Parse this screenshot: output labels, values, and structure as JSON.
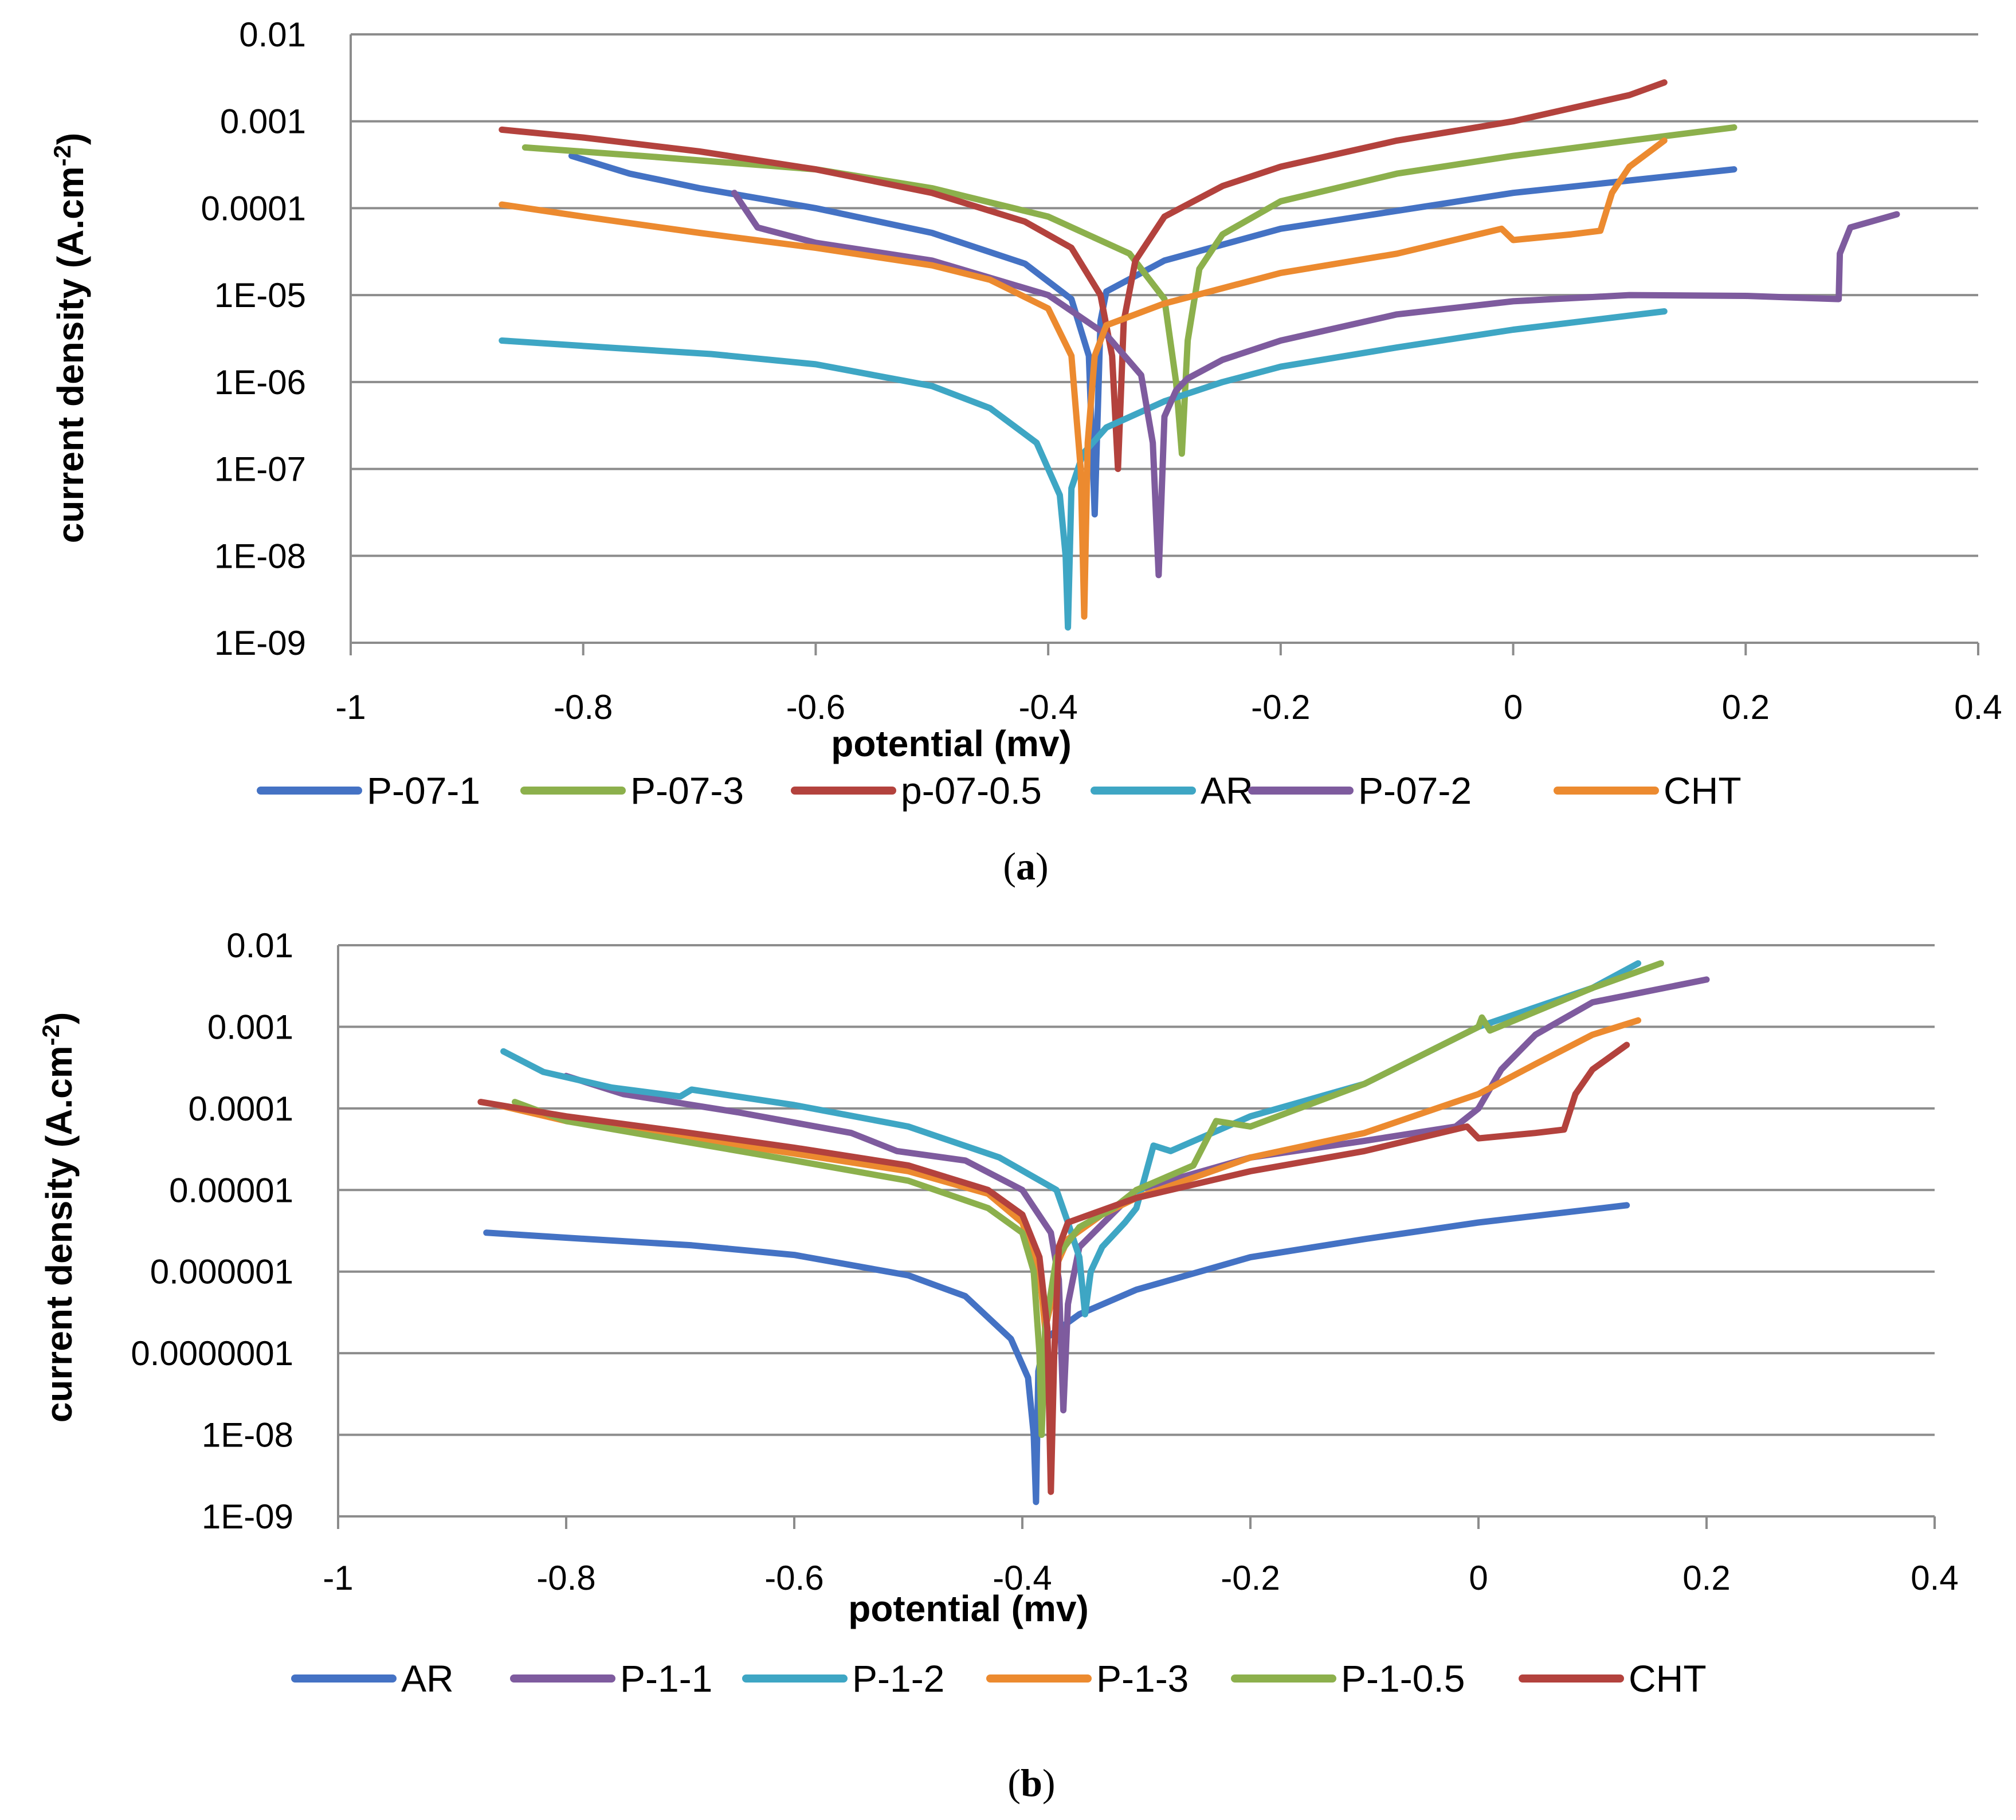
{
  "colors": {
    "blue": "#4472C4",
    "green": "#8CB04C",
    "red": "#B3423D",
    "teal": "#3EA6C4",
    "purple": "#7E5B9E",
    "orange": "#EC8A2F",
    "grid": "#8C8C8C"
  },
  "chart_data": [
    {
      "type": "line",
      "caption_letter": "a",
      "xlabel": "potential (mv)",
      "ylabel": "current density (A.cm",
      "ylabel_sup": "-2",
      "ylabel_close": ")",
      "xlim": [
        -1,
        0.4
      ],
      "x_ticks": [
        -1,
        -0.8,
        -0.6,
        -0.4,
        -0.2,
        0,
        0.2,
        0.4
      ],
      "x_tick_labels": [
        "-1",
        "-0.8",
        "-0.6",
        "-0.4",
        "-0.2",
        "0",
        "0.2",
        "0.4"
      ],
      "y_scale": "log",
      "ylim": [
        1e-09,
        0.01
      ],
      "y_ticks": [
        0.01,
        0.001,
        0.0001,
        1e-05,
        1e-06,
        1e-07,
        1e-08,
        1e-09
      ],
      "y_tick_labels": [
        "0.01",
        "0.001",
        "0.0001",
        "1E-05",
        "1E-06",
        "1E-07",
        "1E-08",
        "1E-09"
      ],
      "series": [
        {
          "name": "P-07-1",
          "color": "#4472C4",
          "x": [
            -0.81,
            -0.76,
            -0.7,
            -0.6,
            -0.5,
            -0.42,
            -0.38,
            -0.365,
            -0.36,
            -0.355,
            -0.35,
            -0.3,
            -0.2,
            0,
            0.19
          ],
          "y": [
            0.0004,
            0.00025,
            0.00017,
            0.0001,
            5.2e-05,
            2.3e-05,
            9e-06,
            2e-06,
            3e-08,
            5e-06,
            1.1e-05,
            2.5e-05,
            5.8e-05,
            0.00015,
            0.00028
          ]
        },
        {
          "name": "P-07-3",
          "color": "#8CB04C",
          "x": [
            -0.85,
            -0.75,
            -0.6,
            -0.5,
            -0.4,
            -0.33,
            -0.3,
            -0.29,
            -0.285,
            -0.28,
            -0.27,
            -0.25,
            -0.2,
            -0.1,
            0,
            0.1,
            0.19
          ],
          "y": [
            0.0005,
            0.0004,
            0.00028,
            0.00017,
            8e-05,
            3e-05,
            9e-06,
            1e-06,
            1.5e-07,
            3e-06,
            2e-05,
            5e-05,
            0.00012,
            0.00025,
            0.0004,
            0.0006,
            0.00085
          ]
        },
        {
          "name": "p-07-0.5",
          "color": "#B3423D",
          "x": [
            -0.87,
            -0.8,
            -0.7,
            -0.6,
            -0.5,
            -0.42,
            -0.38,
            -0.355,
            -0.345,
            -0.34,
            -0.335,
            -0.325,
            -0.3,
            -0.25,
            -0.2,
            -0.1,
            0,
            0.1,
            0.13
          ],
          "y": [
            0.0008,
            0.00065,
            0.00045,
            0.00028,
            0.00015,
            7e-05,
            3.5e-05,
            1e-05,
            2e-06,
            1e-07,
            5e-06,
            2.5e-05,
            8e-05,
            0.00018,
            0.0003,
            0.0006,
            0.001,
            0.002,
            0.0028
          ]
        },
        {
          "name": "AR",
          "color": "#3EA6C4",
          "x": [
            -0.87,
            -0.78,
            -0.69,
            -0.6,
            -0.5,
            -0.45,
            -0.41,
            -0.39,
            -0.385,
            -0.383,
            -0.38,
            -0.37,
            -0.35,
            -0.3,
            -0.25,
            -0.2,
            -0.1,
            0,
            0.13
          ],
          "y": [
            3e-06,
            2.5e-06,
            2.1e-06,
            1.6e-06,
            9e-07,
            5e-07,
            2e-07,
            5e-08,
            1e-08,
            1.5e-09,
            6e-08,
            1.5e-07,
            3e-07,
            6e-07,
            1e-06,
            1.5e-06,
            2.5e-06,
            4e-06,
            6.5e-06
          ]
        },
        {
          "name": "P-07-2",
          "color": "#7E5B9E",
          "x": [
            -0.67,
            -0.65,
            -0.6,
            -0.5,
            -0.4,
            -0.35,
            -0.32,
            -0.31,
            -0.305,
            -0.3,
            -0.29,
            -0.28,
            -0.25,
            -0.2,
            -0.1,
            0,
            0.1,
            0.2,
            0.28,
            0.281,
            0.29,
            0.33
          ],
          "y": [
            0.00015,
            6e-05,
            4e-05,
            2.5e-05,
            1e-05,
            3.5e-06,
            1.2e-06,
            2e-07,
            6e-09,
            4e-07,
            8e-07,
            1.1e-06,
            1.8e-06,
            3e-06,
            6e-06,
            8.5e-06,
            1e-05,
            9.8e-06,
            9e-06,
            3e-05,
            6e-05,
            8.5e-05
          ]
        },
        {
          "name": "CHT",
          "color": "#EC8A2F",
          "x": [
            -0.87,
            -0.8,
            -0.7,
            -0.6,
            -0.5,
            -0.45,
            -0.4,
            -0.38,
            -0.372,
            -0.369,
            -0.366,
            -0.36,
            -0.35,
            -0.3,
            -0.2,
            -0.1,
            -0.01,
            0.0,
            0.05,
            0.075,
            0.085,
            0.1,
            0.13
          ],
          "y": [
            0.00011,
            8e-05,
            5.2e-05,
            3.5e-05,
            2.2e-05,
            1.5e-05,
            7e-06,
            2e-06,
            1e-07,
            2e-09,
            2e-07,
            2e-06,
            4.5e-06,
            8e-06,
            1.8e-05,
            3e-05,
            5.8e-05,
            4.3e-05,
            5e-05,
            5.5e-05,
            0.00015,
            0.0003,
            0.0006
          ]
        }
      ]
    },
    {
      "type": "line",
      "caption_letter": "b",
      "xlabel": "potential (mv)",
      "ylabel": "current density (A.cm",
      "ylabel_sup": "-2",
      "ylabel_close": ")",
      "xlim": [
        -1,
        0.4
      ],
      "x_ticks": [
        -1,
        -0.8,
        -0.6,
        -0.4,
        -0.2,
        0,
        0.2,
        0.4
      ],
      "x_tick_labels": [
        "-1",
        "-0.8",
        "-0.6",
        "-0.4",
        "-0.2",
        "0",
        "0.2",
        "0.4"
      ],
      "y_scale": "log",
      "ylim": [
        1e-09,
        0.01
      ],
      "y_ticks": [
        0.01,
        0.001,
        0.0001,
        1e-05,
        1e-06,
        1e-07,
        1e-08,
        1e-09
      ],
      "y_tick_labels": [
        "0.01",
        "0.001",
        "0.0001",
        "0.00001",
        "0.000001",
        "0.0000001",
        "1E-08",
        "1E-09"
      ],
      "series": [
        {
          "name": "AR",
          "color": "#4472C4",
          "x": [
            -0.87,
            -0.78,
            -0.69,
            -0.6,
            -0.5,
            -0.45,
            -0.41,
            -0.395,
            -0.39,
            -0.388,
            -0.386,
            -0.38,
            -0.35,
            -0.3,
            -0.2,
            -0.1,
            0,
            0.13
          ],
          "y": [
            3e-06,
            2.5e-06,
            2.1e-06,
            1.6e-06,
            9e-07,
            5e-07,
            1.5e-07,
            5e-08,
            1e-08,
            1.5e-09,
            6e-08,
            1.5e-07,
            3e-07,
            6e-07,
            1.5e-06,
            2.5e-06,
            4e-06,
            6.5e-06
          ]
        },
        {
          "name": "P-1-1",
          "color": "#7E5B9E",
          "x": [
            -0.8,
            -0.75,
            -0.65,
            -0.55,
            -0.51,
            -0.45,
            -0.4,
            -0.375,
            -0.368,
            -0.364,
            -0.36,
            -0.35,
            -0.3,
            -0.2,
            -0.1,
            -0.02,
            0,
            0.02,
            0.05,
            0.1,
            0.2
          ],
          "y": [
            0.00025,
            0.00015,
            9e-05,
            5e-05,
            3e-05,
            2.3e-05,
            1e-05,
            3e-06,
            8e-07,
            2e-08,
            4e-07,
            2e-06,
            1e-05,
            2.5e-05,
            4e-05,
            6e-05,
            0.0001,
            0.0003,
            0.0008,
            0.002,
            0.0038
          ]
        },
        {
          "name": "P-1-2",
          "color": "#3EA6C4",
          "x": [
            -0.855,
            -0.82,
            -0.76,
            -0.7,
            -0.69,
            -0.6,
            -0.5,
            -0.42,
            -0.37,
            -0.36,
            -0.35,
            -0.345,
            -0.34,
            -0.33,
            -0.31,
            -0.3,
            -0.285,
            -0.27,
            -0.2,
            -0.1,
            0,
            0.1,
            0.14
          ],
          "y": [
            0.0005,
            0.00028,
            0.00018,
            0.00014,
            0.00017,
            0.00011,
            6e-05,
            2.5e-05,
            1e-05,
            4e-06,
            1.5e-06,
            3e-07,
            1e-06,
            2e-06,
            4e-06,
            6e-06,
            3.5e-05,
            3e-05,
            8e-05,
            0.0002,
            0.001,
            0.003,
            0.006
          ]
        },
        {
          "name": "P-1-3",
          "color": "#EC8A2F",
          "x": [
            -0.86,
            -0.8,
            -0.7,
            -0.6,
            -0.5,
            -0.43,
            -0.4,
            -0.385,
            -0.38,
            -0.375,
            -0.37,
            -0.36,
            -0.33,
            -0.3,
            -0.2,
            -0.1,
            0,
            0.05,
            0.1,
            0.14
          ],
          "y": [
            0.00011,
            7e-05,
            4.5e-05,
            2.8e-05,
            1.7e-05,
            9e-06,
            4e-06,
            1e-06,
            2e-07,
            4e-07,
            1.2e-06,
            2.5e-06,
            5e-06,
            8e-06,
            2.5e-05,
            5e-05,
            0.00015,
            0.00035,
            0.0008,
            0.0012
          ]
        },
        {
          "name": "P-1-0.5",
          "color": "#8CB04C",
          "x": [
            -0.845,
            -0.8,
            -0.7,
            -0.6,
            -0.5,
            -0.43,
            -0.4,
            -0.39,
            -0.385,
            -0.383,
            -0.38,
            -0.37,
            -0.35,
            -0.32,
            -0.3,
            -0.25,
            -0.23,
            -0.2,
            -0.1,
            0,
            0.003,
            0.01,
            0.1,
            0.16
          ],
          "y": [
            0.00012,
            7e-05,
            4e-05,
            2.3e-05,
            1.3e-05,
            6e-06,
            3e-06,
            1e-06,
            1e-07,
            1e-08,
            2e-07,
            1.5e-06,
            3.5e-06,
            6e-06,
            1e-05,
            2e-05,
            7e-05,
            6e-05,
            0.0002,
            0.001,
            0.0013,
            0.0009,
            0.003,
            0.006
          ]
        },
        {
          "name": "CHT",
          "color": "#B3423D",
          "x": [
            -0.875,
            -0.8,
            -0.7,
            -0.6,
            -0.5,
            -0.43,
            -0.4,
            -0.385,
            -0.378,
            -0.375,
            -0.372,
            -0.368,
            -0.36,
            -0.3,
            -0.2,
            -0.1,
            -0.01,
            0.0,
            0.05,
            0.075,
            0.085,
            0.1,
            0.13
          ],
          "y": [
            0.00012,
            8e-05,
            5.2e-05,
            3.3e-05,
            2e-05,
            1e-05,
            5e-06,
            1.5e-06,
            2e-07,
            2e-09,
            1e-07,
            2e-06,
            4e-06,
            8e-06,
            1.7e-05,
            3e-05,
            6e-05,
            4.3e-05,
            5e-05,
            5.5e-05,
            0.00015,
            0.0003,
            0.0006
          ]
        }
      ]
    }
  ]
}
